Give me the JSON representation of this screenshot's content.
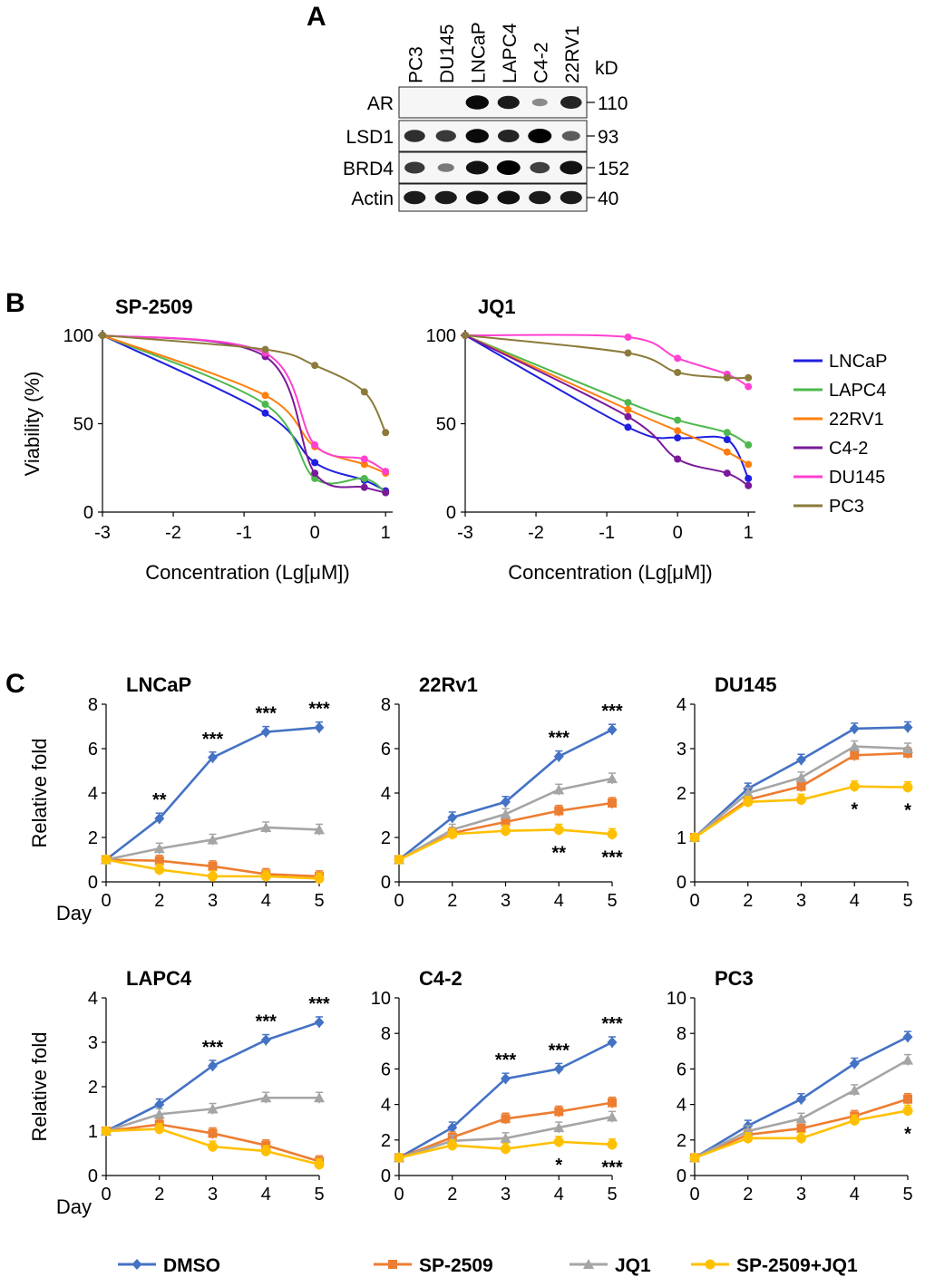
{
  "panels": {
    "a": "A",
    "b": "B",
    "c": "C"
  },
  "western_blot": {
    "lanes": [
      "PC3",
      "DU145",
      "LNCaP",
      "LAPC4",
      "C4-2",
      "22RV1"
    ],
    "unit": "kD",
    "rows": [
      {
        "label": "AR",
        "kd": "110",
        "intensity": [
          0.0,
          0.0,
          0.95,
          0.85,
          0.25,
          0.8
        ]
      },
      {
        "label": "LSD1",
        "kd": "93",
        "intensity": [
          0.75,
          0.7,
          0.95,
          0.8,
          1.0,
          0.5
        ]
      },
      {
        "label": "BRD4",
        "kd": "152",
        "intensity": [
          0.7,
          0.35,
          0.9,
          1.0,
          0.65,
          0.9
        ]
      },
      {
        "label": "Actin",
        "kd": "40",
        "intensity": [
          0.85,
          0.85,
          0.9,
          0.9,
          0.85,
          0.85
        ]
      }
    ]
  },
  "legend_b": [
    {
      "name": "LNCaP",
      "color": "#1f1fe0"
    },
    {
      "name": "LAPC4",
      "color": "#4db84d"
    },
    {
      "name": "22RV1",
      "color": "#ff7f0e"
    },
    {
      "name": "C4-2",
      "color": "#7a1a9a"
    },
    {
      "name": "DU145",
      "color": "#ff40d0"
    },
    {
      "name": "PC3",
      "color": "#8b7a3a"
    }
  ],
  "legend_c": [
    {
      "name": "DMSO",
      "color": "#4472c4",
      "marker": "diamond"
    },
    {
      "name": "SP-2509",
      "color": "#ed7d31",
      "marker": "square"
    },
    {
      "name": "JQ1",
      "color": "#a5a5a5",
      "marker": "triangle"
    },
    {
      "name": "SP-2509+JQ1",
      "color": "#ffc000",
      "marker": "circle"
    }
  ],
  "chart_data": [
    {
      "type": "scatter",
      "title": "SP-2509",
      "xlabel": "Concentration (Lg[μM])",
      "ylabel": "Viability (%)",
      "xlim": [
        -3,
        1.1
      ],
      "ylim": [
        0,
        100
      ],
      "xticks": [
        "-3",
        "-2",
        "-1",
        "0",
        "1"
      ],
      "yticks": [
        "0",
        "50",
        "100"
      ],
      "x": [
        -3,
        -0.7,
        0,
        0.7,
        1
      ],
      "series": [
        {
          "name": "LNCaP",
          "values": [
            100,
            56,
            28,
            18,
            12
          ]
        },
        {
          "name": "LAPC4",
          "values": [
            100,
            61,
            19,
            19,
            11
          ]
        },
        {
          "name": "22RV1",
          "values": [
            100,
            66,
            37,
            27,
            22
          ]
        },
        {
          "name": "C4-2",
          "values": [
            100,
            88,
            22,
            14,
            11
          ]
        },
        {
          "name": "DU145",
          "values": [
            100,
            90,
            38,
            30,
            23
          ]
        },
        {
          "name": "PC3",
          "values": [
            100,
            92,
            83,
            68,
            45
          ]
        }
      ]
    },
    {
      "type": "scatter",
      "title": "JQ1",
      "xlabel": "Concentration (Lg[μM])",
      "ylabel": "",
      "xlim": [
        -3,
        1.1
      ],
      "ylim": [
        0,
        100
      ],
      "xticks": [
        "-3",
        "-2",
        "-1",
        "0",
        "1"
      ],
      "yticks": [
        "0",
        "50",
        "100"
      ],
      "x": [
        -3,
        -0.7,
        0,
        0.7,
        1
      ],
      "series": [
        {
          "name": "LNCaP",
          "values": [
            100,
            48,
            42,
            41,
            19
          ]
        },
        {
          "name": "LAPC4",
          "values": [
            100,
            62,
            52,
            45,
            38
          ]
        },
        {
          "name": "22RV1",
          "values": [
            100,
            58,
            46,
            34,
            27
          ]
        },
        {
          "name": "C4-2",
          "values": [
            100,
            54,
            30,
            22,
            15
          ]
        },
        {
          "name": "DU145",
          "values": [
            100,
            99,
            87,
            78,
            71
          ]
        },
        {
          "name": "PC3",
          "values": [
            100,
            90,
            79,
            76,
            76
          ]
        }
      ]
    },
    {
      "type": "line",
      "title": "LNCaP",
      "ylabel": "Relative fold",
      "xlabel": "Day",
      "categories": [
        "0",
        "2",
        "3",
        "4",
        "5"
      ],
      "ylim": [
        0,
        8
      ],
      "yticks": [
        "0",
        "2",
        "4",
        "6",
        "8"
      ],
      "series": [
        {
          "name": "DMSO",
          "values": [
            1,
            2.85,
            5.6,
            6.75,
            6.95
          ]
        },
        {
          "name": "SP-2509",
          "values": [
            1,
            0.95,
            0.7,
            0.35,
            0.25
          ]
        },
        {
          "name": "JQ1",
          "values": [
            1,
            1.5,
            1.9,
            2.45,
            2.35
          ]
        },
        {
          "name": "SP-2509+JQ1",
          "values": [
            1,
            0.55,
            0.25,
            0.25,
            0.15
          ]
        }
      ],
      "stars_top": [
        "",
        "**",
        "***",
        "***",
        "***"
      ],
      "stars_bottom": [
        "",
        "",
        "",
        "",
        ""
      ]
    },
    {
      "type": "line",
      "title": "22Rv1",
      "ylabel": "",
      "xlabel": "",
      "categories": [
        "0",
        "2",
        "3",
        "4",
        "5"
      ],
      "ylim": [
        0,
        8
      ],
      "yticks": [
        "0",
        "2",
        "4",
        "6",
        "8"
      ],
      "series": [
        {
          "name": "DMSO",
          "values": [
            1,
            2.9,
            3.6,
            5.65,
            6.85
          ]
        },
        {
          "name": "SP-2509",
          "values": [
            1,
            2.2,
            2.7,
            3.2,
            3.55
          ]
        },
        {
          "name": "JQ1",
          "values": [
            1,
            2.35,
            3.05,
            4.15,
            4.65
          ]
        },
        {
          "name": "SP-2509+JQ1",
          "values": [
            1,
            2.15,
            2.3,
            2.35,
            2.15
          ]
        }
      ],
      "stars_top": [
        "",
        "",
        "",
        "***",
        "***"
      ],
      "stars_bottom": [
        "",
        "",
        "",
        "**",
        "***"
      ]
    },
    {
      "type": "line",
      "title": "DU145",
      "ylabel": "",
      "xlabel": "",
      "categories": [
        "0",
        "2",
        "3",
        "4",
        "5"
      ],
      "ylim": [
        0,
        4
      ],
      "yticks": [
        "0",
        "1",
        "2",
        "3",
        "4"
      ],
      "series": [
        {
          "name": "DMSO",
          "values": [
            1,
            2.1,
            2.75,
            3.45,
            3.48
          ]
        },
        {
          "name": "SP-2509",
          "values": [
            1,
            1.85,
            2.15,
            2.85,
            2.9
          ]
        },
        {
          "name": "JQ1",
          "values": [
            1,
            2.0,
            2.35,
            3.05,
            3.0
          ]
        },
        {
          "name": "SP-2509+JQ1",
          "values": [
            1,
            1.8,
            1.85,
            2.15,
            2.13
          ]
        }
      ],
      "stars_top": [
        "",
        "",
        "",
        "",
        ""
      ],
      "stars_bottom": [
        "",
        "",
        "",
        "*",
        "*"
      ]
    },
    {
      "type": "line",
      "title": "LAPC4",
      "ylabel": "Relative fold",
      "xlabel": "Day",
      "categories": [
        "0",
        "2",
        "3",
        "4",
        "5"
      ],
      "ylim": [
        0,
        4
      ],
      "yticks": [
        "0",
        "1",
        "2",
        "3",
        "4"
      ],
      "series": [
        {
          "name": "DMSO",
          "values": [
            1,
            1.6,
            2.47,
            3.05,
            3.45
          ]
        },
        {
          "name": "SP-2509",
          "values": [
            1,
            1.15,
            0.95,
            0.68,
            0.32
          ]
        },
        {
          "name": "JQ1",
          "values": [
            1,
            1.38,
            1.5,
            1.75,
            1.75
          ]
        },
        {
          "name": "SP-2509+JQ1",
          "values": [
            1,
            1.05,
            0.65,
            0.55,
            0.25
          ]
        }
      ],
      "stars_top": [
        "",
        "",
        "***",
        "***",
        "***"
      ],
      "stars_bottom": [
        "",
        "",
        "",
        "",
        ""
      ]
    },
    {
      "type": "line",
      "title": "C4-2",
      "ylabel": "",
      "xlabel": "",
      "categories": [
        "0",
        "2",
        "3",
        "4",
        "5"
      ],
      "ylim": [
        0,
        10
      ],
      "yticks": [
        "0",
        "2",
        "4",
        "6",
        "8",
        "10"
      ],
      "series": [
        {
          "name": "DMSO",
          "values": [
            1,
            2.7,
            5.45,
            6.0,
            7.5
          ]
        },
        {
          "name": "SP-2509",
          "values": [
            1,
            2.15,
            3.2,
            3.6,
            4.1
          ]
        },
        {
          "name": "JQ1",
          "values": [
            1,
            1.95,
            2.1,
            2.7,
            3.3
          ]
        },
        {
          "name": "SP-2509+JQ1",
          "values": [
            1,
            1.7,
            1.5,
            1.9,
            1.75
          ]
        }
      ],
      "stars_top": [
        "",
        "",
        "***",
        "***",
        "***"
      ],
      "stars_bottom": [
        "",
        "",
        "",
        "*",
        "***"
      ]
    },
    {
      "type": "line",
      "title": "PC3",
      "ylabel": "",
      "xlabel": "",
      "categories": [
        "0",
        "2",
        "3",
        "4",
        "5"
      ],
      "ylim": [
        0,
        10
      ],
      "yticks": [
        "0",
        "2",
        "4",
        "6",
        "8",
        "10"
      ],
      "series": [
        {
          "name": "DMSO",
          "values": [
            1,
            2.8,
            4.3,
            6.3,
            7.8
          ]
        },
        {
          "name": "SP-2509",
          "values": [
            1,
            2.3,
            2.65,
            3.35,
            4.3
          ]
        },
        {
          "name": "JQ1",
          "values": [
            1,
            2.5,
            3.2,
            4.8,
            6.5
          ]
        },
        {
          "name": "SP-2509+JQ1",
          "values": [
            1,
            2.1,
            2.1,
            3.1,
            3.65
          ]
        }
      ],
      "stars_top": [
        "",
        "",
        "",
        "",
        ""
      ],
      "stars_bottom": [
        "",
        "",
        "",
        "",
        "*"
      ]
    }
  ]
}
